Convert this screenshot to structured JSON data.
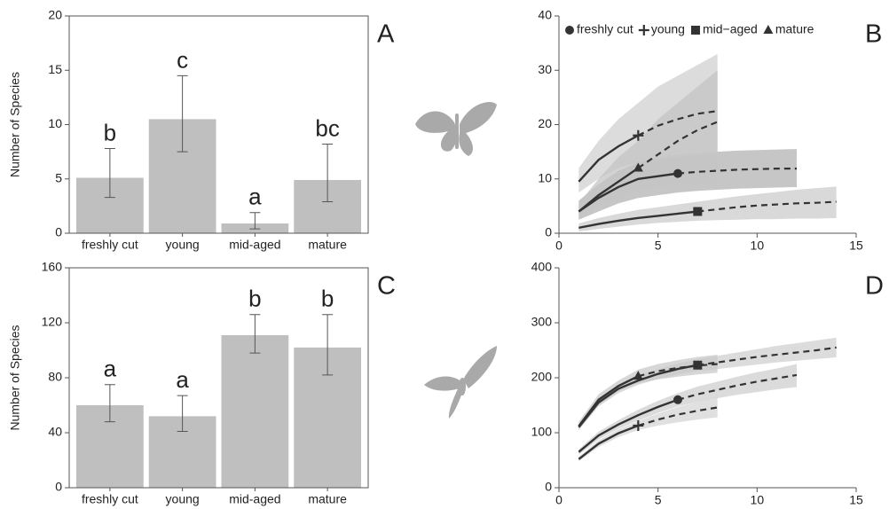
{
  "chart_data": [
    {
      "type": "bar",
      "panel_label": "A",
      "ylabel": "Number of Species",
      "categories": [
        "freshly cut",
        "young",
        "mid-aged",
        "mature"
      ],
      "values": [
        5.1,
        10.5,
        0.9,
        4.9
      ],
      "error_low": [
        3.3,
        7.5,
        0.4,
        2.9
      ],
      "error_high": [
        7.8,
        14.5,
        1.9,
        8.2
      ],
      "annotations": [
        "b",
        "c",
        "a",
        "bc"
      ],
      "color": "#bfbfbf",
      "ylim": [
        0,
        20
      ],
      "yticks": [
        0,
        5,
        10,
        15,
        20
      ]
    },
    {
      "type": "line",
      "panel_label": "B",
      "legend_position": "top",
      "xlim": [
        0,
        15
      ],
      "xticks": [
        0,
        5,
        10,
        15
      ],
      "ylim": [
        0,
        40
      ],
      "yticks": [
        0,
        10,
        20,
        30,
        40
      ],
      "series": [
        {
          "name": "freshly cut",
          "marker": "circle",
          "color": "#333333",
          "band_color": "#b3b3b3",
          "x": [
            1,
            2,
            3,
            4,
            5,
            6,
            7,
            8,
            9,
            10,
            11,
            12
          ],
          "values": [
            4,
            6.5,
            8.5,
            10,
            10.5,
            11,
            null,
            null,
            null,
            null,
            null,
            null
          ],
          "extrapolated": [
            null,
            null,
            null,
            null,
            null,
            11,
            11.3,
            11.5,
            11.7,
            11.8,
            11.9,
            11.9
          ],
          "lower": [
            2.5,
            4,
            5.5,
            6.5,
            7,
            7.5,
            7.8,
            8,
            8.2,
            8.3,
            8.4,
            8.5
          ],
          "upper": [
            6,
            9,
            11.5,
            13,
            14,
            14.5,
            14.8,
            15,
            15.2,
            15.3,
            15.4,
            15.5
          ]
        },
        {
          "name": "young",
          "marker": "plus",
          "color": "#333333",
          "band_color": "#d0d0d0",
          "x": [
            1,
            2,
            3,
            4,
            5,
            6,
            7,
            8
          ],
          "values": [
            9.5,
            13.5,
            16,
            18,
            null,
            null,
            null,
            null
          ],
          "extrapolated": [
            null,
            null,
            null,
            18,
            19.8,
            21,
            22,
            22.5
          ],
          "lower": [
            7.5,
            10,
            12,
            13,
            13.5,
            14,
            14.3,
            14.5
          ],
          "upper": [
            12,
            17,
            21,
            24,
            27,
            29,
            31,
            33
          ]
        },
        {
          "name": "mid−aged",
          "marker": "square",
          "color": "#333333",
          "band_color": "#cccccc",
          "x": [
            1,
            2,
            3,
            4,
            5,
            6,
            7,
            8,
            9,
            10,
            11,
            12,
            13,
            14
          ],
          "values": [
            1,
            1.7,
            2.3,
            2.8,
            3.2,
            3.6,
            4,
            null,
            null,
            null,
            null,
            null,
            null,
            null
          ],
          "extrapolated": [
            null,
            null,
            null,
            null,
            null,
            null,
            4,
            4.4,
            4.8,
            5.1,
            5.3,
            5.5,
            5.6,
            5.8
          ],
          "lower": [
            0.3,
            0.8,
            1.2,
            1.6,
            1.9,
            2.1,
            2.3,
            2.4,
            2.5,
            2.6,
            2.6,
            2.7,
            2.7,
            2.8
          ],
          "upper": [
            1.8,
            2.8,
            3.6,
            4.3,
            4.8,
            5.3,
            5.8,
            6.3,
            6.8,
            7.2,
            7.6,
            8,
            8.3,
            8.6
          ]
        },
        {
          "name": "mature",
          "marker": "triangle",
          "color": "#333333",
          "band_color": "#c4c4c4",
          "x": [
            1,
            2,
            3,
            4,
            5,
            6,
            7,
            8
          ],
          "values": [
            4,
            7,
            9.5,
            12,
            null,
            null,
            null,
            null
          ],
          "extrapolated": [
            null,
            null,
            null,
            12,
            14.5,
            17,
            19,
            20.5
          ],
          "lower": [
            3,
            5,
            6.5,
            8,
            8.5,
            9,
            9,
            9
          ],
          "upper": [
            5.5,
            10,
            14,
            17,
            21,
            24,
            27,
            30
          ]
        }
      ]
    },
    {
      "type": "bar",
      "panel_label": "C",
      "ylabel": "Number of Species",
      "categories": [
        "freshly cut",
        "young",
        "mid-aged",
        "mature"
      ],
      "values": [
        60,
        52,
        111,
        102
      ],
      "error_low": [
        48,
        41,
        98,
        82
      ],
      "error_high": [
        75,
        67,
        126,
        126
      ],
      "annotations": [
        "a",
        "a",
        "b",
        "b"
      ],
      "color": "#bfbfbf",
      "ylim": [
        0,
        160
      ],
      "yticks": [
        0,
        40,
        80,
        120,
        160
      ]
    },
    {
      "type": "line",
      "panel_label": "D",
      "xlim": [
        0,
        15
      ],
      "xticks": [
        0,
        5,
        10,
        15
      ],
      "ylim": [
        0,
        400
      ],
      "yticks": [
        0,
        100,
        200,
        300,
        400
      ],
      "series": [
        {
          "name": "freshly cut",
          "marker": "circle",
          "color": "#333333",
          "band_color": "#cfcfcf",
          "x": [
            1,
            2,
            3,
            4,
            5,
            6,
            7,
            8,
            9,
            10,
            11,
            12
          ],
          "values": [
            65,
            95,
            115,
            132,
            147,
            160,
            null,
            null,
            null,
            null,
            null,
            null
          ],
          "extrapolated": [
            null,
            null,
            null,
            null,
            null,
            160,
            170,
            178,
            186,
            193,
            199,
            205
          ],
          "lower": [
            60,
            88,
            107,
            122,
            136,
            148,
            156,
            163,
            169,
            174,
            179,
            183
          ],
          "upper": [
            70,
            102,
            123,
            142,
            158,
            172,
            184,
            193,
            202,
            210,
            217,
            225
          ]
        },
        {
          "name": "young",
          "marker": "plus",
          "color": "#333333",
          "band_color": "#d6d6d6",
          "x": [
            1,
            2,
            3,
            4,
            5,
            6,
            7,
            8
          ],
          "values": [
            52,
            80,
            99,
            113,
            null,
            null,
            null,
            null
          ],
          "extrapolated": [
            null,
            null,
            null,
            113,
            124,
            133,
            140,
            146
          ],
          "lower": [
            48,
            74,
            92,
            105,
            113,
            119,
            124,
            128
          ],
          "upper": [
            56,
            86,
            106,
            121,
            135,
            147,
            156,
            164
          ]
        },
        {
          "name": "mid−aged",
          "marker": "square",
          "color": "#333333",
          "band_color": "#d0d0d0",
          "x": [
            1,
            2,
            3,
            4,
            5,
            6,
            7,
            8,
            9,
            10,
            11,
            12,
            13,
            14
          ],
          "values": [
            110,
            155,
            180,
            195,
            207,
            216,
            223,
            null,
            null,
            null,
            null,
            null,
            null,
            null
          ],
          "extrapolated": [
            null,
            null,
            null,
            null,
            null,
            null,
            223,
            228,
            233,
            238,
            242,
            246,
            250,
            255
          ],
          "lower": [
            105,
            148,
            172,
            187,
            198,
            206,
            212,
            216,
            220,
            224,
            228,
            231,
            234,
            237
          ],
          "upper": [
            117,
            162,
            188,
            204,
            216,
            226,
            234,
            240,
            246,
            252,
            258,
            263,
            268,
            273
          ]
        },
        {
          "name": "mature",
          "marker": "triangle",
          "color": "#333333",
          "band_color": "#cacaca",
          "x": [
            1,
            2,
            3,
            4,
            5,
            6,
            7,
            8
          ],
          "values": [
            112,
            160,
            185,
            203,
            null,
            null,
            null,
            null
          ],
          "extrapolated": [
            null,
            null,
            null,
            203,
            212,
            218,
            222,
            225
          ],
          "lower": [
            105,
            150,
            175,
            190,
            197,
            202,
            206,
            209
          ],
          "upper": [
            120,
            170,
            195,
            215,
            225,
            232,
            238,
            242
          ]
        }
      ]
    }
  ]
}
